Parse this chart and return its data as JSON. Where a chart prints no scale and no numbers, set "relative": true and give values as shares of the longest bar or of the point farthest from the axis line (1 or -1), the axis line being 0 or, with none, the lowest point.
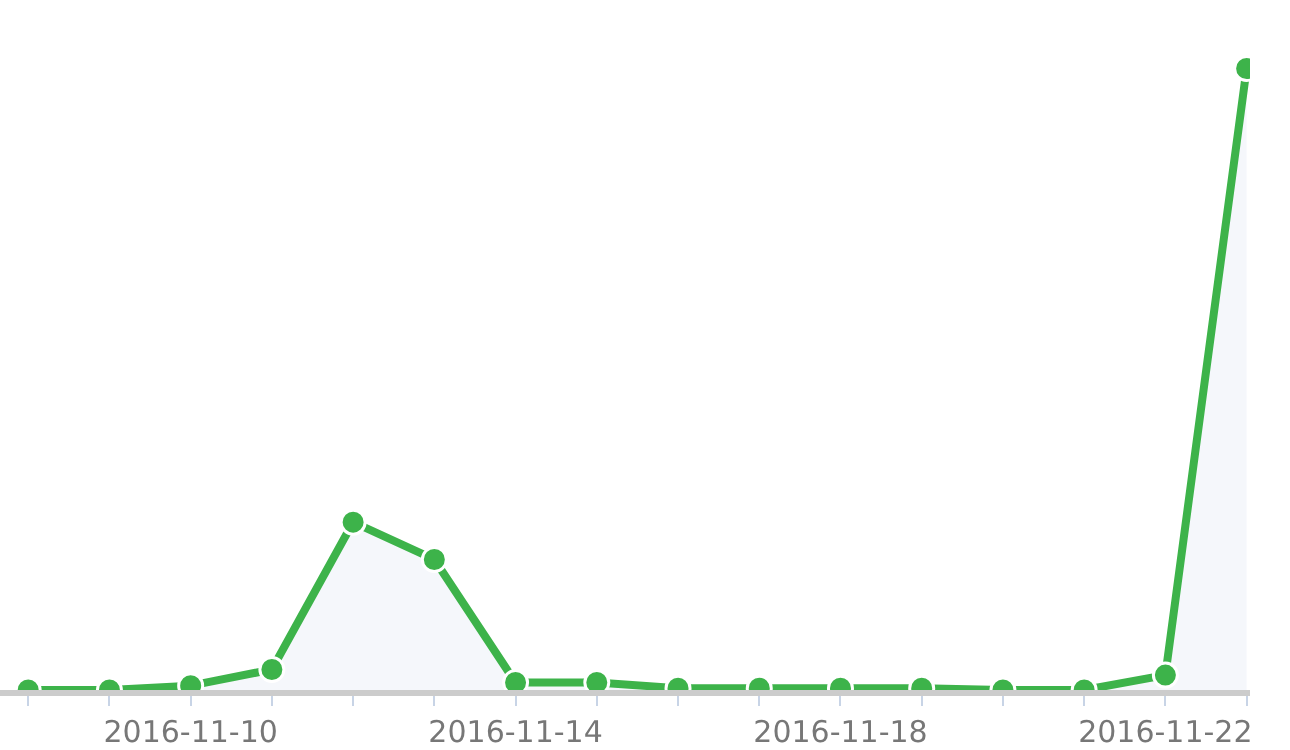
{
  "chart_data": {
    "type": "area",
    "relative": true,
    "x": [
      "2016-11-08",
      "2016-11-09",
      "2016-11-10",
      "2016-11-11",
      "2016-11-12",
      "2016-11-13",
      "2016-11-14",
      "2016-11-15",
      "2016-11-16",
      "2016-11-17",
      "2016-11-18",
      "2016-11-19",
      "2016-11-20",
      "2016-11-21",
      "2016-11-22",
      "2016-11-23"
    ],
    "series": [
      {
        "color": "#3db34a",
        "values": [
          0,
          0,
          0.007,
          0.033,
          0.27,
          0.21,
          0.012,
          0.012,
          0.003,
          0.003,
          0.003,
          0.003,
          0,
          0,
          0.024,
          1
        ]
      }
    ],
    "xlim": [
      "2016-11-07T15:40",
      "2016-11-23T01:00"
    ],
    "xticks": [
      {
        "value": "2016-11-08",
        "label": null
      },
      {
        "value": "2016-11-09",
        "label": null
      },
      "2016-11-10",
      {
        "value": "2016-11-11",
        "label": null
      },
      {
        "value": "2016-11-12",
        "label": null
      },
      {
        "value": "2016-11-13",
        "label": null
      },
      "2016-11-14",
      {
        "value": "2016-11-15",
        "label": null
      },
      {
        "value": "2016-11-16",
        "label": null
      },
      {
        "value": "2016-11-17",
        "label": null
      },
      "2016-11-18",
      {
        "value": "2016-11-19",
        "label": null
      },
      {
        "value": "2016-11-20",
        "label": null
      },
      {
        "value": "2016-11-21",
        "label": null
      },
      "2016-11-22",
      {
        "value": "2016-11-23",
        "label": null
      }
    ],
    "grid": false,
    "marker": "circle",
    "line_style": "solid",
    "legend": false
  }
}
